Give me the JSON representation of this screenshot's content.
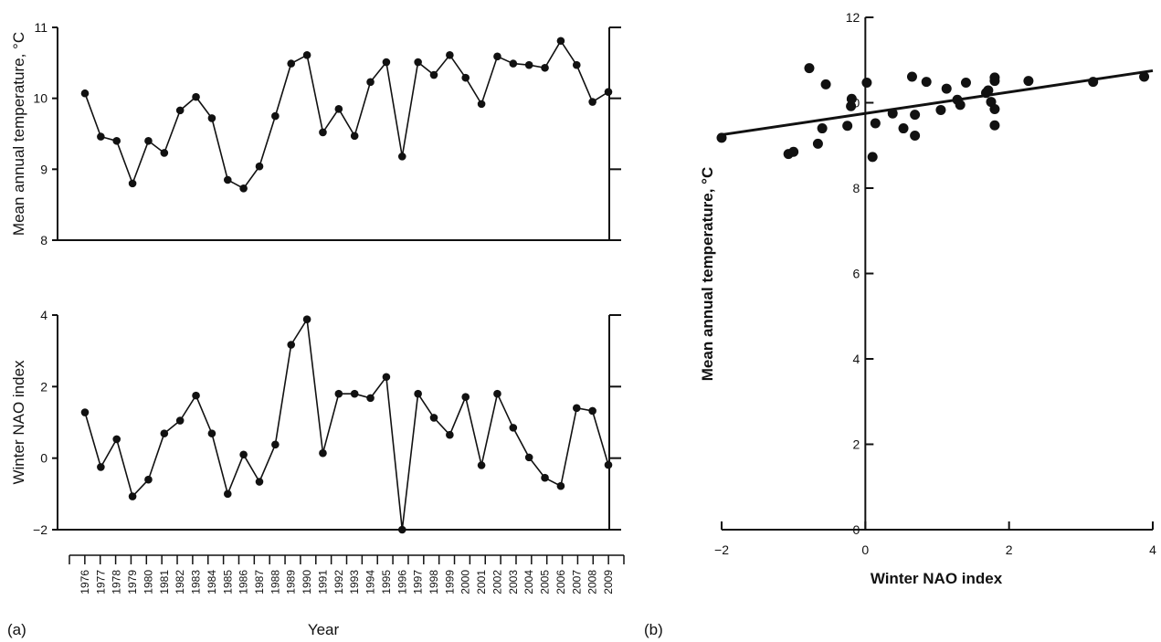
{
  "chart_data": [
    {
      "type": "line",
      "panel": "(a)",
      "ylabel": "Mean annual temperature, °C",
      "ylim": [
        8,
        11
      ],
      "yticks": [
        "8",
        "9",
        "10",
        "11"
      ],
      "x": [
        "1976",
        "1977",
        "1978",
        "1979",
        "1980",
        "1981",
        "1982",
        "1983",
        "1984",
        "1985",
        "1986",
        "1987",
        "1988",
        "1989",
        "1990",
        "1991",
        "1992",
        "1993",
        "1994",
        "1995",
        "1996",
        "1997",
        "1998",
        "1999",
        "2000",
        "2001",
        "2002",
        "2003",
        "2004",
        "2005",
        "2006",
        "2007",
        "2008",
        "2009"
      ],
      "values": [
        10.07,
        9.46,
        9.4,
        8.8,
        9.4,
        9.23,
        9.83,
        10.02,
        9.72,
        8.85,
        8.73,
        9.04,
        9.75,
        10.49,
        10.61,
        9.52,
        9.85,
        9.47,
        10.23,
        10.51,
        9.18,
        10.51,
        10.33,
        10.61,
        10.29,
        9.92,
        10.59,
        10.49,
        10.47,
        10.43,
        10.81,
        10.47,
        9.95,
        10.09
      ]
    },
    {
      "type": "line",
      "panel": "(a)",
      "xlabel": "Year",
      "ylabel": "Winter NAO index",
      "ylim": [
        -2,
        4
      ],
      "yticks": [
        "−2",
        "0",
        "2",
        "4"
      ],
      "x": [
        "1976",
        "1977",
        "1978",
        "1979",
        "1980",
        "1981",
        "1982",
        "1983",
        "1984",
        "1985",
        "1986",
        "1987",
        "1988",
        "1989",
        "1990",
        "1991",
        "1992",
        "1993",
        "1994",
        "1995",
        "1996",
        "1997",
        "1998",
        "1999",
        "2000",
        "2001",
        "2002",
        "2003",
        "2004",
        "2005",
        "2006",
        "2007",
        "2008",
        "2009"
      ],
      "values": [
        1.28,
        -0.25,
        0.53,
        -1.07,
        -0.6,
        0.69,
        1.05,
        1.75,
        0.69,
        -1.0,
        0.1,
        -0.66,
        0.38,
        3.17,
        3.88,
        0.14,
        1.8,
        1.8,
        1.68,
        2.27,
        -2.0,
        1.8,
        1.13,
        0.65,
        1.71,
        -0.2,
        1.8,
        0.85,
        0.02,
        -0.55,
        -0.78,
        1.4,
        1.32,
        -0.19
      ]
    },
    {
      "type": "scatter",
      "panel": "(b)",
      "xlabel": "Winter NAO index",
      "ylabel": "Mean annual temperature, °C",
      "xlim": [
        -2,
        4
      ],
      "ylim": [
        0,
        12
      ],
      "xticks": [
        "−2",
        "0",
        "2",
        "4"
      ],
      "yticks": [
        "0",
        "2",
        "4",
        "6",
        "8",
        "10",
        "12"
      ],
      "points": [
        [
          1.28,
          10.07
        ],
        [
          -0.25,
          9.46
        ],
        [
          0.53,
          9.4
        ],
        [
          -1.07,
          8.8
        ],
        [
          -0.6,
          9.4
        ],
        [
          0.69,
          9.23
        ],
        [
          1.05,
          9.83
        ],
        [
          1.75,
          10.02
        ],
        [
          0.69,
          9.72
        ],
        [
          -1.0,
          8.85
        ],
        [
          0.1,
          8.73
        ],
        [
          -0.66,
          9.04
        ],
        [
          0.38,
          9.75
        ],
        [
          3.17,
          10.49
        ],
        [
          3.88,
          10.61
        ],
        [
          0.14,
          9.52
        ],
        [
          1.8,
          9.85
        ],
        [
          1.8,
          9.47
        ],
        [
          1.68,
          10.23
        ],
        [
          2.27,
          10.51
        ],
        [
          -2.0,
          9.18
        ],
        [
          1.8,
          10.51
        ],
        [
          1.13,
          10.33
        ],
        [
          0.65,
          10.61
        ],
        [
          1.71,
          10.29
        ],
        [
          -0.2,
          9.92
        ],
        [
          1.8,
          10.59
        ],
        [
          0.85,
          10.49
        ],
        [
          0.02,
          10.47
        ],
        [
          -0.55,
          10.43
        ],
        [
          -0.78,
          10.81
        ],
        [
          1.4,
          10.47
        ],
        [
          1.32,
          9.95
        ],
        [
          -0.19,
          10.09
        ]
      ],
      "trendline": {
        "slope": 0.25,
        "intercept": 9.75
      }
    }
  ],
  "labels": {
    "panel_a": "(a)",
    "panel_b": "(b)"
  }
}
